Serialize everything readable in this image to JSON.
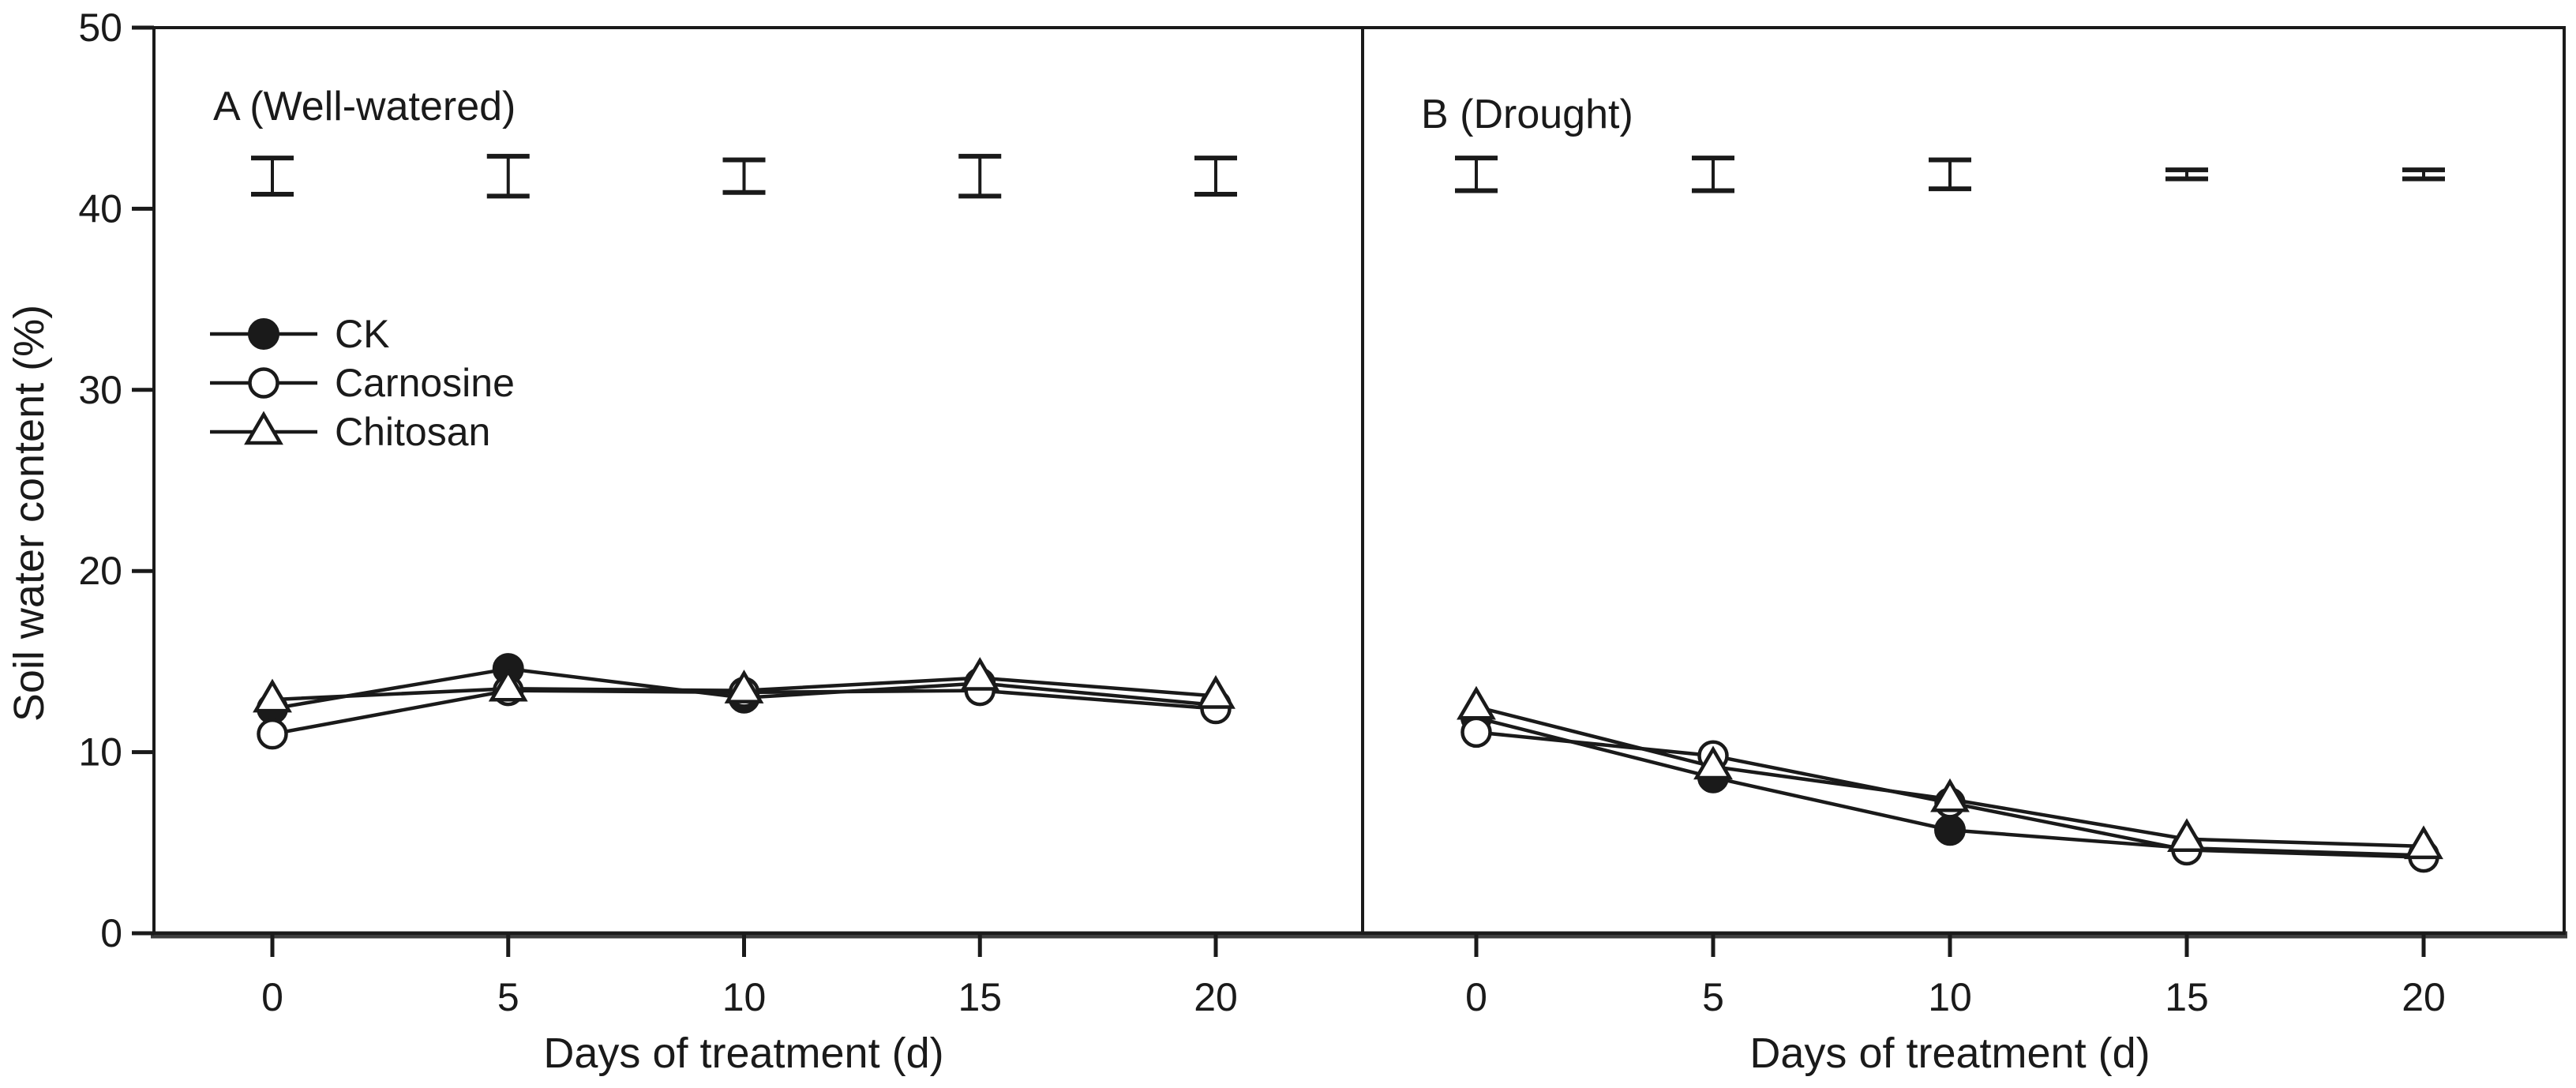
{
  "figure": {
    "y_axis_label": "Soil water content (%)",
    "x_axis_label": "Days of treatment (d)",
    "y_ticks": [
      0,
      10,
      20,
      30,
      40,
      50
    ],
    "x_ticks": [
      0,
      5,
      10,
      15,
      20
    ],
    "colors": {
      "ink": "#1a1a1a",
      "axis_heavy": "#3c3c3c",
      "background": "#ffffff"
    }
  },
  "legend": {
    "items": [
      {
        "label": "CK",
        "marker": "filled-circle"
      },
      {
        "label": "Carnosine",
        "marker": "open-circle"
      },
      {
        "label": "Chitosan",
        "marker": "open-triangle"
      }
    ]
  },
  "chart_data": [
    {
      "type": "line",
      "title": "A (Well-watered)",
      "x": [
        0,
        5,
        10,
        15,
        20
      ],
      "xlabel": "Days of treatment (d)",
      "ylabel": "Soil water content (%)",
      "ylim": [
        0,
        50
      ],
      "grid": false,
      "legend_position": "middle-left",
      "series": [
        {
          "name": "CK",
          "marker": "filled-circle",
          "values": [
            12.4,
            14.6,
            13.0,
            13.8,
            12.6
          ]
        },
        {
          "name": "Carnosine",
          "marker": "open-circle",
          "values": [
            11.0,
            13.4,
            13.3,
            13.4,
            12.4
          ]
        },
        {
          "name": "Chitosan",
          "marker": "open-triangle",
          "values": [
            12.9,
            13.5,
            13.4,
            14.1,
            13.1
          ]
        }
      ],
      "lsd_error_bars": {
        "center": 41.8,
        "half_heights": [
          1.0,
          1.1,
          0.9,
          1.1,
          1.0
        ]
      }
    },
    {
      "type": "line",
      "title": "B (Drought)",
      "x": [
        0,
        5,
        10,
        15,
        20
      ],
      "xlabel": "Days of treatment (d)",
      "ylabel": "Soil water content (%)",
      "ylim": [
        0,
        50
      ],
      "grid": false,
      "legend_position": "none",
      "series": [
        {
          "name": "CK",
          "marker": "filled-circle",
          "values": [
            11.9,
            8.6,
            5.7,
            4.7,
            4.3
          ]
        },
        {
          "name": "Carnosine",
          "marker": "open-circle",
          "values": [
            11.1,
            9.8,
            7.2,
            4.6,
            4.2
          ]
        },
        {
          "name": "Chitosan",
          "marker": "open-triangle",
          "values": [
            12.5,
            9.2,
            7.4,
            5.2,
            4.8
          ]
        }
      ],
      "lsd_error_bars": {
        "center": 41.9,
        "half_heights": [
          0.9,
          0.9,
          0.8,
          0.25,
          0.25
        ]
      }
    }
  ]
}
